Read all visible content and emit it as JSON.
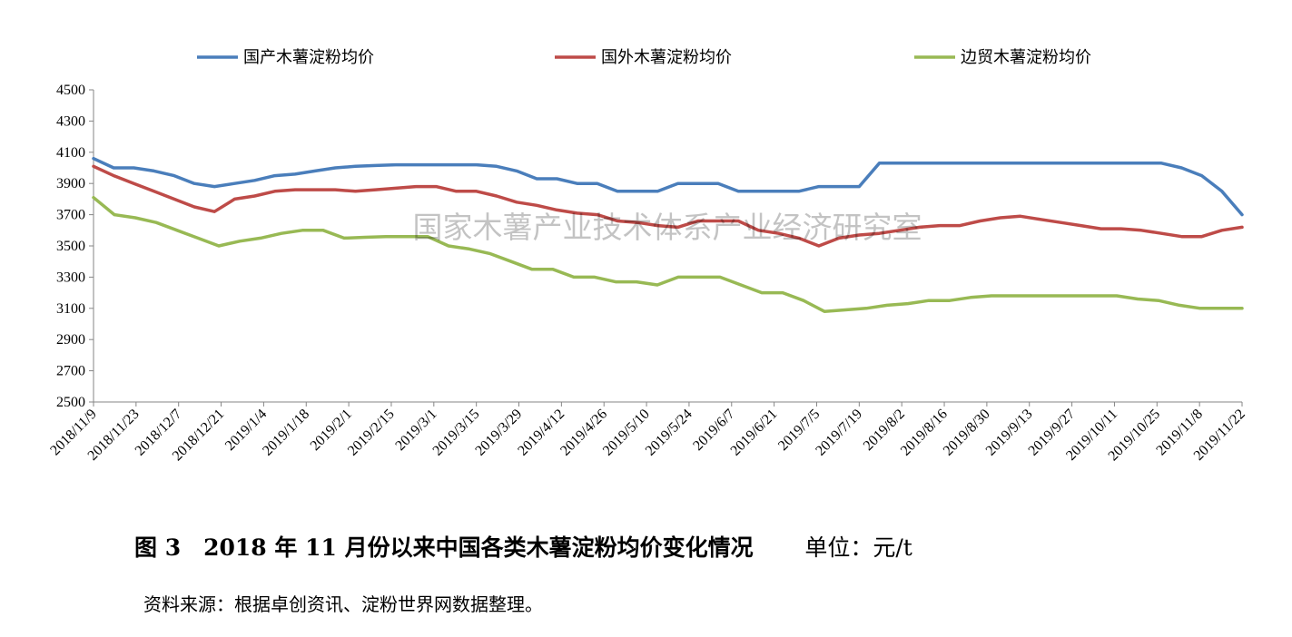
{
  "chart_data": {
    "type": "line",
    "title": "",
    "xlabel": "",
    "ylabel": "",
    "ylim": [
      2500,
      4500
    ],
    "yticks": [
      2500,
      2700,
      2900,
      3100,
      3300,
      3500,
      3700,
      3900,
      4100,
      4300,
      4500
    ],
    "grid": false,
    "legend_position": "top",
    "x_tick_labels": [
      "2018/11/9",
      "2018/11/23",
      "2018/12/7",
      "2018/12/21",
      "2019/1/4",
      "2019/1/18",
      "2019/2/1",
      "2019/2/15",
      "2019/3/1",
      "2019/3/15",
      "2019/3/29",
      "2019/4/12",
      "2019/4/26",
      "2019/5/10",
      "2019/5/24",
      "2019/6/7",
      "2019/6/21",
      "2019/7/5",
      "2019/7/19",
      "2019/8/2",
      "2019/8/16",
      "2019/8/30",
      "2019/9/13",
      "2019/9/27",
      "2019/10/11",
      "2019/10/25",
      "2019/11/8",
      "2019/11/22"
    ],
    "series": [
      {
        "name": "国产木薯淀粉均价",
        "color": "#4a7ebb",
        "values": [
          4060,
          4000,
          4000,
          3980,
          3950,
          3900,
          3880,
          3900,
          3920,
          3950,
          3960,
          3980,
          4000,
          4010,
          4015,
          4020,
          4020,
          4020,
          4020,
          4020,
          4010,
          3980,
          3930,
          3930,
          3900,
          3900,
          3850,
          3850,
          3850,
          3900,
          3900,
          3900,
          3850,
          3850,
          3850,
          3850,
          3880,
          3880,
          3880,
          4030,
          4030,
          4030,
          4030,
          4030,
          4030,
          4030,
          4030,
          4030,
          4030,
          4030,
          4030,
          4030,
          4030,
          4030,
          4000,
          3950,
          3850,
          3700
        ]
      },
      {
        "name": "国外木薯淀粉均价",
        "color": "#be4b48",
        "values": [
          4010,
          3950,
          3900,
          3850,
          3800,
          3750,
          3720,
          3800,
          3820,
          3850,
          3860,
          3860,
          3860,
          3850,
          3860,
          3870,
          3880,
          3880,
          3850,
          3850,
          3820,
          3780,
          3760,
          3730,
          3710,
          3700,
          3660,
          3650,
          3630,
          3620,
          3660,
          3660,
          3660,
          3600,
          3580,
          3550,
          3500,
          3550,
          3570,
          3580,
          3600,
          3620,
          3630,
          3630,
          3660,
          3680,
          3690,
          3670,
          3650,
          3630,
          3610,
          3610,
          3600,
          3580,
          3560,
          3560,
          3600,
          3620
        ]
      },
      {
        "name": "边贸木薯淀粉均价",
        "color": "#98b954",
        "values": [
          3810,
          3700,
          3680,
          3650,
          3600,
          3550,
          3500,
          3530,
          3550,
          3580,
          3600,
          3600,
          3550,
          3555,
          3560,
          3560,
          3560,
          3500,
          3480,
          3450,
          3400,
          3350,
          3350,
          3300,
          3300,
          3270,
          3270,
          3250,
          3300,
          3300,
          3300,
          3250,
          3200,
          3200,
          3150,
          3080,
          3090,
          3100,
          3120,
          3130,
          3150,
          3150,
          3170,
          3180,
          3180,
          3180,
          3180,
          3180,
          3180,
          3180,
          3160,
          3150,
          3120,
          3100,
          3100,
          3100
        ]
      }
    ]
  },
  "watermark": "国家木薯产业技术体系产业经济研究室",
  "caption": {
    "title": "图 3　2018 年 11 月份以来中国各类木薯淀粉均价变化情况",
    "unit": "单位：元/t"
  },
  "source_note": "资料来源：根据卓创资讯、淀粉世界网数据整理。"
}
